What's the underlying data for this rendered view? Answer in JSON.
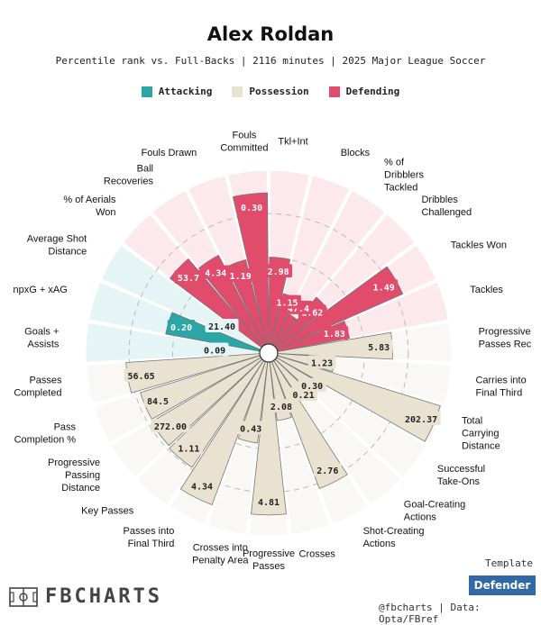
{
  "header": {
    "title": "Alex Roldan",
    "subtitle": "Percentile rank vs. Full-Backs | 2116 minutes | 2025 Major League Soccer"
  },
  "legend": [
    {
      "label": "Attacking",
      "color": "#2ba5a5"
    },
    {
      "label": "Possession",
      "color": "#e9e2d0"
    },
    {
      "label": "Defending",
      "color": "#e14b6c"
    }
  ],
  "chart_data": {
    "type": "radar-bar",
    "rlim": [
      0,
      100
    ],
    "series": [
      {
        "group": "Attacking",
        "label": "Average Shot Distance",
        "percentile": 0,
        "value": "21.40"
      },
      {
        "group": "Attacking",
        "label": "npxG + xAG",
        "percentile": 55,
        "value": "0.20"
      },
      {
        "group": "Attacking",
        "label": "Goals + Assists",
        "percentile": 0,
        "value": "0.09"
      },
      {
        "group": "Possession",
        "label": "Passes Completed",
        "percentile": 77,
        "value": "56.65"
      },
      {
        "group": "Possession",
        "label": "Pass Completion %",
        "percentile": 72,
        "value": "84.5"
      },
      {
        "group": "Possession",
        "label": "Progressive Passing Distance",
        "percentile": 73,
        "value": "272.00"
      },
      {
        "group": "Possession",
        "label": "Key Passes",
        "percentile": 74,
        "value": "1.11"
      },
      {
        "group": "Possession",
        "label": "Passes into Final Third",
        "percentile": 88,
        "value": "4.34"
      },
      {
        "group": "Possession",
        "label": "Crosses into Penalty Area",
        "percentile": 47,
        "value": "0.43"
      },
      {
        "group": "Possession",
        "label": "Progressive Passes",
        "percentile": 88,
        "value": "4.81"
      },
      {
        "group": "Possession",
        "label": "Crosses",
        "percentile": 34,
        "value": "2.08"
      },
      {
        "group": "Possession",
        "label": "Shot-Creating Actions",
        "percentile": 78,
        "value": "2.76"
      },
      {
        "group": "Possession",
        "label": "Goal-Creating Actions",
        "percentile": 27,
        "value": "0.21"
      },
      {
        "group": "Possession",
        "label": "Successful Take-Ons",
        "percentile": 23,
        "value": "0.30"
      },
      {
        "group": "Possession",
        "label": "Total Carrying Distance",
        "percentile": 98,
        "value": "202.37"
      },
      {
        "group": "Possession",
        "label": "Carries into Final Third",
        "percentile": 33,
        "value": "1.23"
      },
      {
        "group": "Possession",
        "label": "Progressive Passes Rec",
        "percentile": 66,
        "value": "5.83"
      },
      {
        "group": "Defending",
        "label": "Tackles",
        "percentile": 42,
        "value": "1.83"
      },
      {
        "group": "Defending",
        "label": "Tackles Won",
        "percentile": 79,
        "value": "1.49"
      },
      {
        "group": "Defending",
        "label": "Dribbles Challenged",
        "percentile": 37,
        "value": "1.62"
      },
      {
        "group": "Defending",
        "label": "% of Dribblers Tackled",
        "percentile": 20,
        "value": "47.4"
      },
      {
        "group": "Defending",
        "label": "Blocks",
        "percentile": 30,
        "value": "1.15"
      },
      {
        "group": "Defending",
        "label": "Tkl+Int",
        "percentile": 50,
        "value": "2.98"
      },
      {
        "group": "Defending",
        "label": "Fouls Committed",
        "percentile": 87,
        "value": "0.30"
      },
      {
        "group": "Defending",
        "label": "Fouls Drawn",
        "percentile": 50,
        "value": "1.19"
      },
      {
        "group": "Defending",
        "label": "Ball Recoveries",
        "percentile": 58,
        "value": "4.34"
      },
      {
        "group": "Defending",
        "label": "% of Aerials Won",
        "percentile": 66,
        "value": "53.7"
      }
    ],
    "colors": {
      "Attacking": "#2ba5a5",
      "Possession": "#e9e2d0",
      "Defending": "#e14b6c"
    },
    "bg_colors": {
      "Attacking": "#e5f4f4",
      "Possession": "#faf8f5",
      "Defending": "#fbe9ee"
    }
  },
  "footer": {
    "brand": "FBCHARTS",
    "template_label": "Template",
    "template_value": "Defender",
    "credit": "@fbcharts | Data: Opta/FBref"
  }
}
